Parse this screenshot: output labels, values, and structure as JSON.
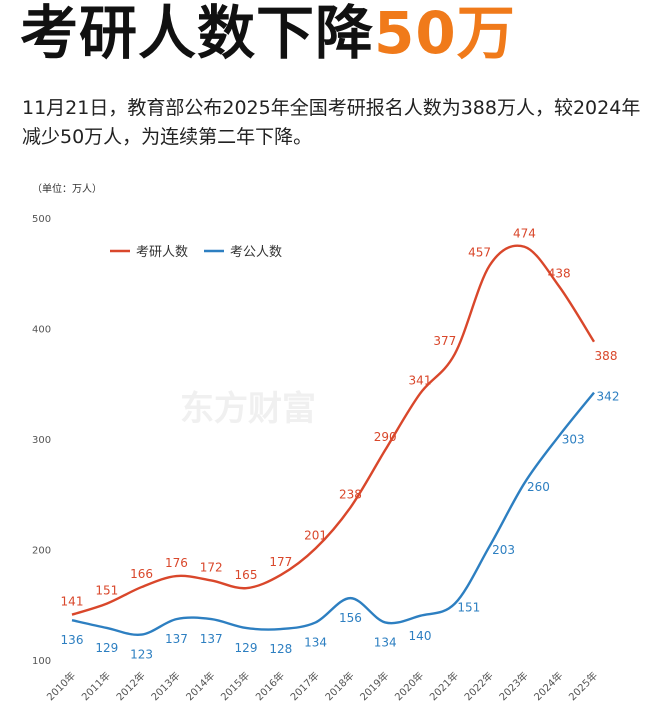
{
  "headline": {
    "text": "考研人数下降",
    "accent": "50万"
  },
  "summary": "11月21日，教育部公布2025年全国考研报名人数为388万人，较2024年减少50万人，为连续第二年下降。",
  "watermark": "东方财富",
  "colors": {
    "accent": "#f07a1a",
    "series_red": "#d9472b",
    "series_blue": "#2d7fc1"
  },
  "chart_data": {
    "type": "line",
    "unit_label": "（单位：万人）",
    "x": [
      "2010年",
      "2011年",
      "2012年",
      "2013年",
      "2014年",
      "2015年",
      "2016年",
      "2017年",
      "2018年",
      "2019年",
      "2020年",
      "2021年",
      "2022年",
      "2023年",
      "2024年",
      "2025年"
    ],
    "series": [
      {
        "name": "考研人数",
        "values": [
          141,
          151,
          166,
          176,
          172,
          165,
          177,
          201,
          238,
          290,
          341,
          377,
          457,
          474,
          438,
          388
        ]
      },
      {
        "name": "考公人数",
        "values": [
          136,
          129,
          123,
          137,
          137,
          129,
          128,
          134,
          156,
          134,
          140,
          151,
          203,
          260,
          303,
          342
        ]
      }
    ],
    "yticks": [
      100,
      200,
      300,
      400,
      500
    ],
    "ylim": [
      100,
      500
    ],
    "legend": "top-left",
    "grid": false,
    "smooth": true
  }
}
